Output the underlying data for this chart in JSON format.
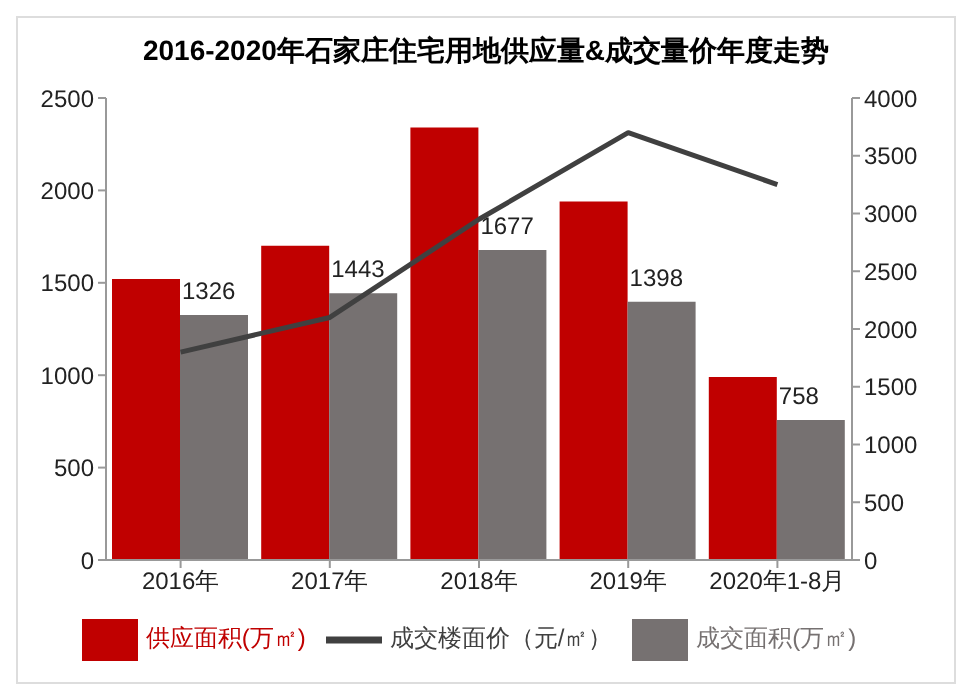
{
  "chart_data": {
    "type": "bar",
    "title": "2016-2020年石家庄住宅用地供应量&成交量价年度走势",
    "categories": [
      "2016年",
      "2017年",
      "2018年",
      "2019年",
      "2020年1-8月"
    ],
    "series": [
      {
        "name": "供应面积(万㎡)",
        "color": "#c00000",
        "values": [
          1520,
          1700,
          2340,
          1940,
          990
        ]
      },
      {
        "name": "成交面积(万㎡)",
        "color": "#767171",
        "values": [
          1326,
          1443,
          1677,
          1398,
          758
        ],
        "value_labels": [
          "1326",
          "1443",
          "1677",
          "1398",
          "758"
        ]
      },
      {
        "name": "成交楼面价（元/㎡）",
        "type": "line",
        "axis": "y2",
        "color": "#404040",
        "values": [
          1800,
          2100,
          2950,
          3700,
          3250
        ]
      }
    ],
    "ylim": [
      0,
      2500
    ],
    "yticks": [
      0,
      500,
      1000,
      1500,
      2000,
      2500
    ],
    "y2lim": [
      0,
      4000
    ],
    "y2ticks": [
      0,
      500,
      1000,
      1500,
      2000,
      2500,
      3000,
      3500,
      4000
    ],
    "grid": false,
    "legend": "bottom",
    "marker": "none"
  }
}
